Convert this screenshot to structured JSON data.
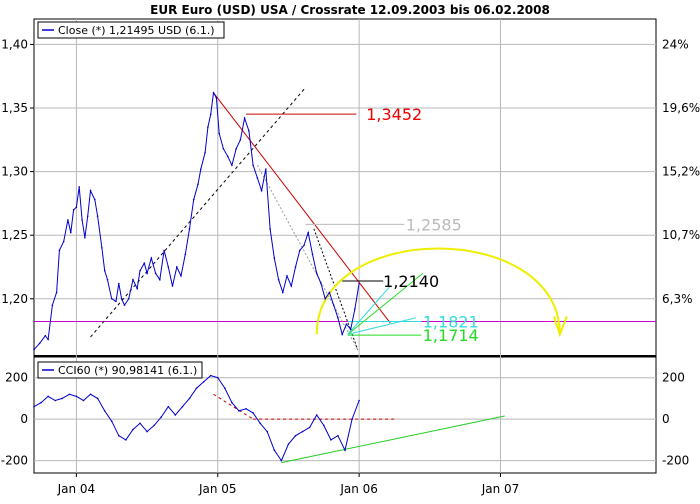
{
  "colors": {
    "price_line": "#0000cc",
    "cci_line": "#0000cc",
    "downtrend": "#cc0000",
    "uptrend_dashed": "#000000",
    "fib_dotted": "#999999",
    "horizontal_support": "#cc00cc",
    "fan_cyan": "#33dddd",
    "fan_green": "#22dd22",
    "arc_yellow": "#eeee00",
    "cci_dashed": "#cc0000",
    "cci_trend": "#22cc22",
    "grid": "#b8b8b8",
    "annot_red": "#ee0000",
    "annot_grey": "#bbbbbb",
    "annot_black": "#000000",
    "annot_cyan": "#33dddd",
    "annot_green": "#22dd22"
  },
  "chart_data": [
    {
      "type": "line",
      "title": "EUR Euro (USD) USA / Crossrate 12.09.2003 bis 06.02.2008",
      "legend": "Close (*) 1,21495 USD (6.1.)",
      "y_left_ticks": [
        "1,40",
        "1,35",
        "1,30",
        "1,25",
        "1,20"
      ],
      "y_left_values": [
        1.4,
        1.35,
        1.3,
        1.25,
        1.2
      ],
      "y_right_ticks": [
        "24%",
        "19,6%",
        "15,2%",
        "10,7%",
        "6,3%"
      ],
      "y_right_values": [
        1.4,
        1.35,
        1.3,
        1.25,
        1.2
      ],
      "ylim": [
        1.155,
        1.42
      ],
      "x_ticks": [
        "Jan 04",
        "Jan 05",
        "Jan 06",
        "Jan 07"
      ],
      "x_tick_values": [
        2004.0,
        2005.0,
        2006.0,
        2007.0
      ],
      "xlim": [
        2003.7,
        2008.1
      ],
      "grid": true,
      "series": [
        {
          "x": [
            2003.7,
            2003.74,
            2003.78,
            2003.8,
            2003.83,
            2003.86,
            2003.88,
            2003.91,
            2003.94,
            2003.96,
            2003.98,
            2004.0,
            2004.02,
            2004.04,
            2004.06,
            2004.08,
            2004.1,
            2004.13,
            2004.15,
            2004.18,
            2004.2,
            2004.22,
            2004.25,
            2004.28,
            2004.3,
            2004.32,
            2004.34,
            2004.37,
            2004.4,
            2004.43,
            2004.45,
            2004.48,
            2004.5,
            2004.53,
            2004.56,
            2004.59,
            2004.62,
            2004.65,
            2004.68,
            2004.71,
            2004.74,
            2004.77,
            2004.8,
            2004.83,
            2004.86,
            2004.88,
            2004.91,
            2004.93,
            2004.95,
            2004.97,
            2004.99,
            2005.01,
            2005.04,
            2005.07,
            2005.1,
            2005.13,
            2005.16,
            2005.19,
            2005.22,
            2005.25,
            2005.28,
            2005.31,
            2005.34,
            2005.37,
            2005.4,
            2005.43,
            2005.46,
            2005.49,
            2005.52,
            2005.55,
            2005.58,
            2005.61,
            2005.64,
            2005.67,
            2005.7,
            2005.73,
            2005.76,
            2005.79,
            2005.82,
            2005.85,
            2005.88,
            2005.91,
            2005.94,
            2005.97,
            2006.0
          ],
          "values": [
            1.16,
            1.165,
            1.171,
            1.168,
            1.195,
            1.205,
            1.238,
            1.245,
            1.262,
            1.252,
            1.27,
            1.272,
            1.288,
            1.262,
            1.248,
            1.265,
            1.285,
            1.278,
            1.265,
            1.24,
            1.222,
            1.215,
            1.2,
            1.198,
            1.212,
            1.2,
            1.195,
            1.2,
            1.215,
            1.208,
            1.222,
            1.228,
            1.22,
            1.232,
            1.22,
            1.215,
            1.238,
            1.225,
            1.21,
            1.225,
            1.218,
            1.235,
            1.255,
            1.278,
            1.29,
            1.302,
            1.315,
            1.335,
            1.345,
            1.362,
            1.358,
            1.33,
            1.318,
            1.312,
            1.305,
            1.318,
            1.325,
            1.342,
            1.332,
            1.305,
            1.295,
            1.285,
            1.302,
            1.255,
            1.232,
            1.215,
            1.205,
            1.218,
            1.21,
            1.225,
            1.238,
            1.242,
            1.252,
            1.235,
            1.22,
            1.212,
            1.2,
            1.205,
            1.195,
            1.185,
            1.172,
            1.18,
            1.176,
            1.192,
            1.212
          ]
        }
      ],
      "annotations": [
        {
          "label": "1,3452",
          "value": 1.3452,
          "color": "#ee0000"
        },
        {
          "label": "1,2585",
          "value": 1.2585,
          "color": "#bbbbbb"
        },
        {
          "label": "1,2140",
          "value": 1.214,
          "color": "#000000"
        },
        {
          "label": "1,1821",
          "value": 1.1821,
          "color": "#33dddd"
        },
        {
          "label": "1,1714",
          "value": 1.1714,
          "color": "#22dd22"
        }
      ]
    },
    {
      "type": "line",
      "legend": "CCI60 (*) 90,98141 (6.1.)",
      "y_ticks": [
        "200",
        "0",
        "-200"
      ],
      "y_tick_values": [
        200,
        0,
        -200
      ],
      "ylim": [
        -260,
        300
      ],
      "xlim": [
        2003.7,
        2008.1
      ],
      "grid": true,
      "series": [
        {
          "x": [
            2003.7,
            2003.75,
            2003.8,
            2003.85,
            2003.9,
            2003.95,
            2004.0,
            2004.05,
            2004.1,
            2004.15,
            2004.2,
            2004.25,
            2004.3,
            2004.35,
            2004.4,
            2004.45,
            2004.5,
            2004.55,
            2004.6,
            2004.65,
            2004.7,
            2004.75,
            2004.8,
            2004.85,
            2004.9,
            2004.95,
            2005.0,
            2005.05,
            2005.1,
            2005.15,
            2005.2,
            2005.25,
            2005.3,
            2005.35,
            2005.4,
            2005.45,
            2005.5,
            2005.55,
            2005.6,
            2005.65,
            2005.7,
            2005.75,
            2005.8,
            2005.85,
            2005.9,
            2005.95,
            2006.0
          ],
          "values": [
            60,
            80,
            110,
            90,
            100,
            120,
            110,
            90,
            120,
            100,
            40,
            -10,
            -80,
            -100,
            -50,
            -20,
            -60,
            -30,
            10,
            60,
            20,
            60,
            100,
            150,
            180,
            210,
            200,
            150,
            80,
            40,
            50,
            30,
            -20,
            -60,
            -150,
            -200,
            -120,
            -80,
            -60,
            -40,
            20,
            -30,
            -100,
            -80,
            -150,
            0,
            90
          ]
        }
      ]
    }
  ]
}
